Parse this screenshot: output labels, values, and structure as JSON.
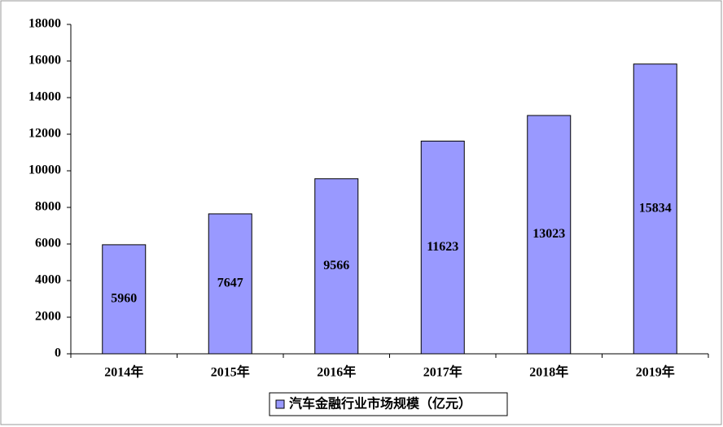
{
  "chart_data": {
    "type": "bar",
    "categories": [
      "2014年",
      "2015年",
      "2016年",
      "2017年",
      "2018年",
      "2019年"
    ],
    "series": [
      {
        "name": "汽车金融行业市场规模（亿元）",
        "color": "#9999ff",
        "values": [
          5960,
          7647,
          9566,
          11623,
          13023,
          15834
        ]
      }
    ],
    "ylim": [
      0,
      18000
    ],
    "yticks": [
      0,
      2000,
      4000,
      6000,
      8000,
      10000,
      12000,
      14000,
      16000,
      18000
    ],
    "grid": false,
    "legend": "bottom"
  }
}
